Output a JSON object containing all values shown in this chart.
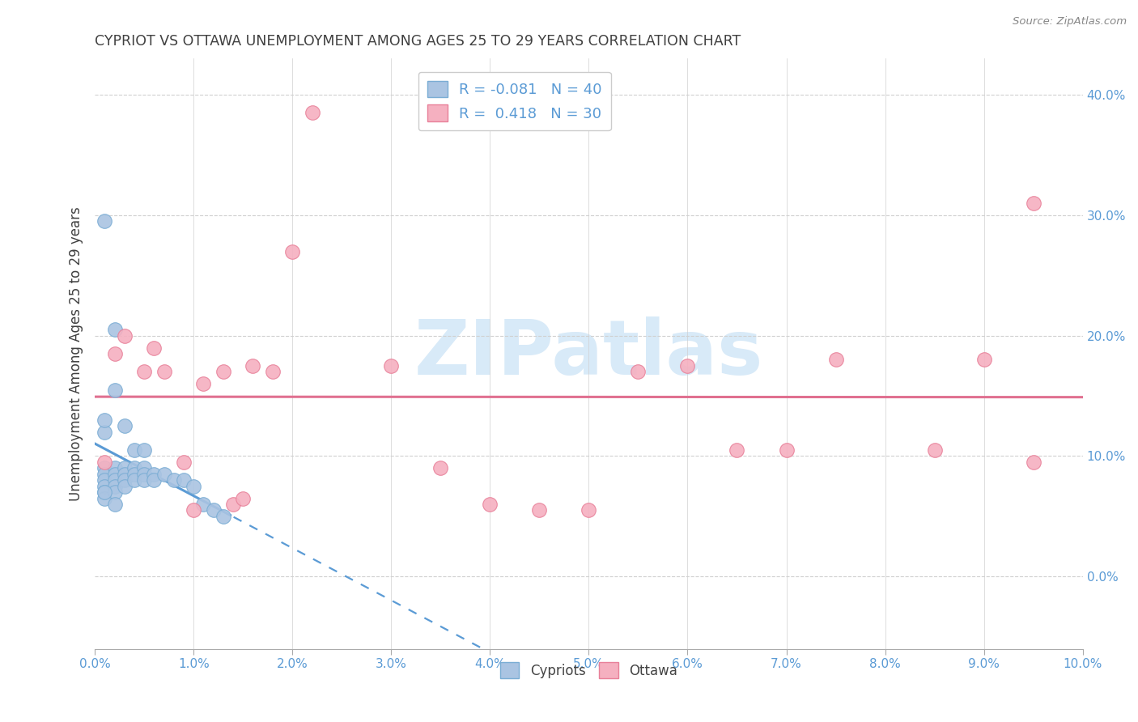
{
  "title": "CYPRIOT VS OTTAWA UNEMPLOYMENT AMONG AGES 25 TO 29 YEARS CORRELATION CHART",
  "source": "Source: ZipAtlas.com",
  "ylabel": "Unemployment Among Ages 25 to 29 years",
  "xlim": [
    0.0,
    0.1
  ],
  "ylim": [
    -0.06,
    0.43
  ],
  "cypriot_R": -0.081,
  "cypriot_N": 40,
  "ottawa_R": 0.418,
  "ottawa_N": 30,
  "cypriot_color": "#aac4e2",
  "ottawa_color": "#f5b0c0",
  "cypriot_edge_color": "#7aadd4",
  "ottawa_edge_color": "#e88099",
  "cypriot_line_color": "#5b9bd5",
  "ottawa_line_color": "#e07090",
  "background_color": "#ffffff",
  "watermark_color": "#d8eaf8",
  "grid_color": "#d0d0d0",
  "tick_color": "#5b9bd5",
  "title_color": "#404040",
  "ylabel_color": "#404040",
  "source_color": "#888888",
  "cypriot_x": [
    0.001,
    0.001,
    0.001,
    0.001,
    0.001,
    0.001,
    0.002,
    0.002,
    0.002,
    0.002,
    0.002,
    0.003,
    0.003,
    0.003,
    0.003,
    0.004,
    0.004,
    0.004,
    0.005,
    0.005,
    0.005,
    0.006,
    0.006,
    0.007,
    0.008,
    0.009,
    0.01,
    0.011,
    0.012,
    0.013,
    0.001,
    0.002,
    0.003,
    0.004,
    0.005,
    0.001,
    0.001,
    0.001,
    0.002,
    0.002
  ],
  "cypriot_y": [
    0.09,
    0.085,
    0.08,
    0.075,
    0.07,
    0.065,
    0.09,
    0.085,
    0.08,
    0.075,
    0.07,
    0.09,
    0.085,
    0.08,
    0.075,
    0.09,
    0.085,
    0.08,
    0.09,
    0.085,
    0.08,
    0.085,
    0.08,
    0.085,
    0.08,
    0.08,
    0.075,
    0.06,
    0.055,
    0.05,
    0.295,
    0.205,
    0.125,
    0.105,
    0.105,
    0.12,
    0.13,
    0.07,
    0.155,
    0.06
  ],
  "ottawa_x": [
    0.001,
    0.002,
    0.003,
    0.005,
    0.006,
    0.007,
    0.009,
    0.01,
    0.011,
    0.013,
    0.014,
    0.015,
    0.016,
    0.018,
    0.02,
    0.022,
    0.03,
    0.035,
    0.04,
    0.045,
    0.05,
    0.055,
    0.06,
    0.065,
    0.07,
    0.075,
    0.085,
    0.09,
    0.095,
    0.095
  ],
  "ottawa_y": [
    0.095,
    0.185,
    0.2,
    0.17,
    0.19,
    0.17,
    0.095,
    0.055,
    0.16,
    0.17,
    0.06,
    0.065,
    0.175,
    0.17,
    0.27,
    0.385,
    0.175,
    0.09,
    0.06,
    0.055,
    0.055,
    0.17,
    0.175,
    0.105,
    0.105,
    0.18,
    0.105,
    0.18,
    0.095,
    0.31
  ]
}
